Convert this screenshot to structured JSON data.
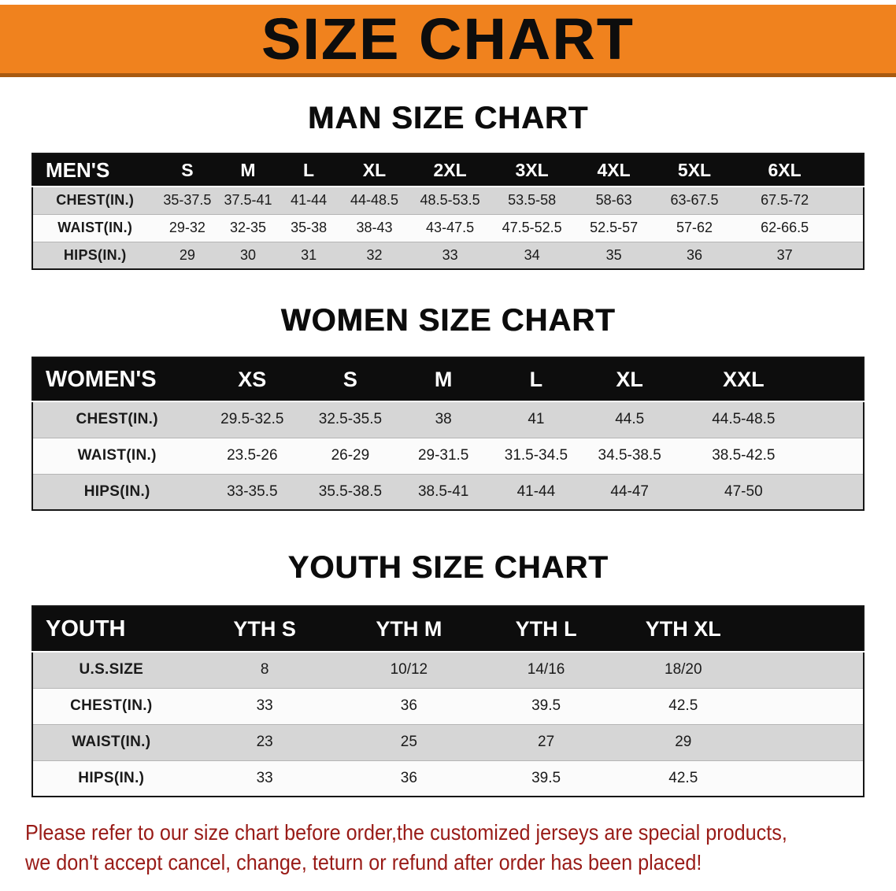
{
  "page": {
    "title": "SIZE CHART"
  },
  "colors": {
    "banner_orange": "#F0821E",
    "banner_edge": "#A85A10",
    "table_header_black": "#0D0D0D",
    "row_gray": "#D6D6D6",
    "row_white": "#FBFBFB",
    "disclaimer_red": "#991B17"
  },
  "chart_data": [
    {
      "type": "table",
      "title": "MAN SIZE CHART",
      "header": [
        "MEN'S",
        "S",
        "M",
        "L",
        "XL",
        "2XL",
        "3XL",
        "4XL",
        "5XL",
        "6XL"
      ],
      "rows": [
        [
          "CHEST(IN.)",
          "35-37.5",
          "37.5-41",
          "41-44",
          "44-48.5",
          "48.5-53.5",
          "53.5-58",
          "58-63",
          "63-67.5",
          "67.5-72"
        ],
        [
          "WAIST(IN.)",
          "29-32",
          "32-35",
          "35-38",
          "38-43",
          "43-47.5",
          "47.5-52.5",
          "52.5-57",
          "57-62",
          "62-66.5"
        ],
        [
          "HIPS(IN.)",
          "29",
          "30",
          "31",
          "32",
          "33",
          "34",
          "35",
          "36",
          "37"
        ]
      ]
    },
    {
      "type": "table",
      "title": "WOMEN SIZE CHART",
      "header": [
        "WOMEN'S",
        "XS",
        "S",
        "M",
        "L",
        "XL",
        "XXL"
      ],
      "rows": [
        [
          "CHEST(IN.)",
          "29.5-32.5",
          "32.5-35.5",
          "38",
          "41",
          "44.5",
          "44.5-48.5"
        ],
        [
          "WAIST(IN.)",
          "23.5-26",
          "26-29",
          "29-31.5",
          "31.5-34.5",
          "34.5-38.5",
          "38.5-42.5"
        ],
        [
          "HIPS(IN.)",
          "33-35.5",
          "35.5-38.5",
          "38.5-41",
          "41-44",
          "44-47",
          "47-50"
        ]
      ]
    },
    {
      "type": "table",
      "title": "YOUTH SIZE CHART",
      "header": [
        "YOUTH",
        "YTH S",
        "YTH M",
        "YTH L",
        "YTH XL"
      ],
      "rows": [
        [
          "U.S.SIZE",
          "8",
          "10/12",
          "14/16",
          "18/20"
        ],
        [
          "CHEST(IN.)",
          "33",
          "36",
          "39.5",
          "42.5"
        ],
        [
          "WAIST(IN.)",
          "23",
          "25",
          "27",
          "29"
        ],
        [
          "HIPS(IN.)",
          "33",
          "36",
          "39.5",
          "42.5"
        ]
      ]
    }
  ],
  "disclaimer": {
    "line1": "Please refer to our size chart before order,the customized jerseys are special products,",
    "line2": "we don't accept cancel, change, teturn or refund after order has been placed!"
  }
}
